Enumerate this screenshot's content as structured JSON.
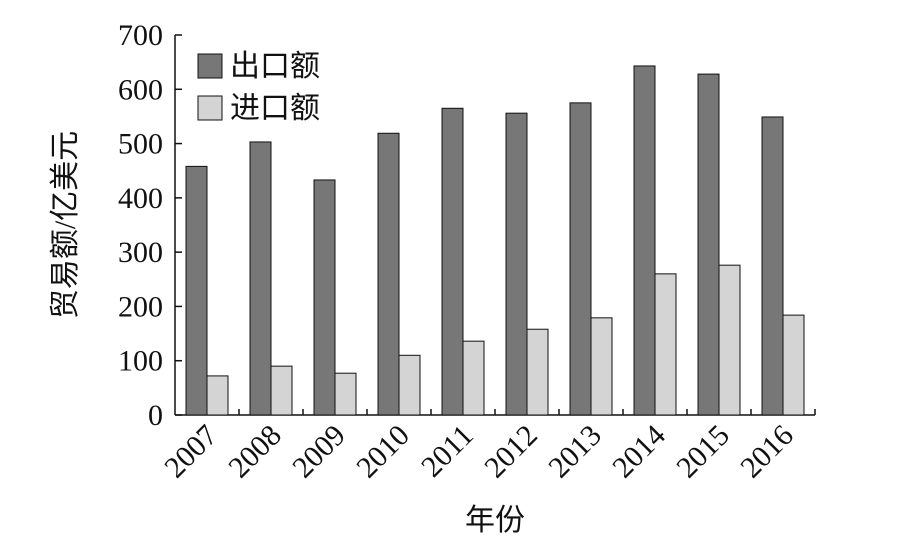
{
  "chart_data": {
    "type": "bar",
    "x_label": "年份",
    "y_label": "贸易额/亿美元",
    "categories": [
      "2007",
      "2008",
      "2009",
      "2010",
      "2011",
      "2012",
      "2013",
      "2014",
      "2015",
      "2016"
    ],
    "series": [
      {
        "name": "出口额",
        "color": "#777777",
        "values": [
          458,
          503,
          433,
          519,
          565,
          556,
          575,
          643,
          628,
          549
        ]
      },
      {
        "name": "进口额",
        "color": "#d4d4d4",
        "values": [
          72,
          90,
          77,
          110,
          136,
          158,
          179,
          260,
          276,
          184
        ]
      }
    ],
    "ylim": [
      0,
      700
    ],
    "yticks": [
      0,
      100,
      200,
      300,
      400,
      500,
      600,
      700
    ],
    "legend": "upper-left",
    "grid": false
  }
}
